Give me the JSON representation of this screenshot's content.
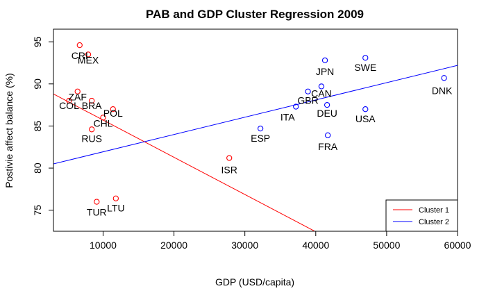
{
  "chart_data": {
    "type": "scatter",
    "title": "PAB and GDP Cluster Regression 2009",
    "xlabel": "GDP (USD/capita)",
    "ylabel": "Postivie affect balance (%)",
    "xlim": [
      3000,
      60000
    ],
    "ylim": [
      72.5,
      96.5
    ],
    "xticks": [
      10000,
      20000,
      30000,
      40000,
      50000,
      60000
    ],
    "yticks": [
      75,
      80,
      85,
      90,
      95
    ],
    "grid": false,
    "legend_position": "bottom-right",
    "series": [
      {
        "name": "Cluster 1",
        "color": "#ff0000",
        "points": [
          {
            "label": "CRI",
            "x": 6700,
            "y": 94.6
          },
          {
            "label": "MEX",
            "x": 7900,
            "y": 93.5
          },
          {
            "label": "ZAF",
            "x": 6400,
            "y": 89.1
          },
          {
            "label": "COL",
            "x": 5200,
            "y": 88.0
          },
          {
            "label": "BRA",
            "x": 8400,
            "y": 88.0
          },
          {
            "label": "POL",
            "x": 11400,
            "y": 87.0
          },
          {
            "label": "CHL",
            "x": 10000,
            "y": 86.0
          },
          {
            "label": "RUS",
            "x": 8400,
            "y": 84.6
          },
          {
            "label": "ISR",
            "x": 27800,
            "y": 81.2
          },
          {
            "label": "TUR",
            "x": 9100,
            "y": 76.0
          },
          {
            "label": "LTU",
            "x": 11800,
            "y": 76.4
          }
        ],
        "regression": {
          "x": [
            3000,
            60000
          ],
          "y": [
            88.8,
            63.6
          ]
        }
      },
      {
        "name": "Cluster 2",
        "color": "#0000ff",
        "points": [
          {
            "label": "JPN",
            "x": 41300,
            "y": 92.8
          },
          {
            "label": "SWE",
            "x": 47000,
            "y": 93.1
          },
          {
            "label": "DNK",
            "x": 58100,
            "y": 90.7
          },
          {
            "label": "CAN",
            "x": 40800,
            "y": 89.7
          },
          {
            "label": "GBR",
            "x": 38900,
            "y": 89.1
          },
          {
            "label": "ITA",
            "x": 37200,
            "y": 87.3
          },
          {
            "label": "DEU",
            "x": 41600,
            "y": 87.5
          },
          {
            "label": "USA",
            "x": 47000,
            "y": 87.0
          },
          {
            "label": "ESP",
            "x": 32200,
            "y": 84.7
          },
          {
            "label": "FRA",
            "x": 41700,
            "y": 83.9
          }
        ],
        "regression": {
          "x": [
            3000,
            60000
          ],
          "y": [
            80.5,
            92.2
          ]
        }
      }
    ]
  }
}
